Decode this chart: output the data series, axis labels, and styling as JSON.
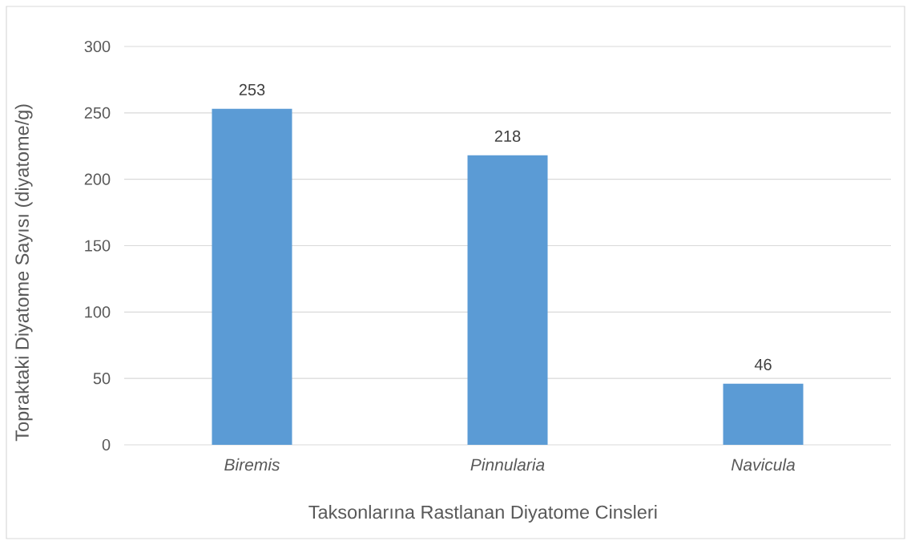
{
  "chart_data": {
    "type": "bar",
    "xlabel": "Taksonlarına Rastlanan Diyatome Cinsleri",
    "ylabel": "Topraktaki Diyatome Sayısı (diyatome/g)",
    "categories": [
      "Biremis",
      "Pinnularia",
      "Navicula"
    ],
    "values": [
      253,
      218,
      46
    ],
    "color": "#5b9bd5",
    "ylim": [
      0,
      300
    ],
    "yticks": [
      0,
      50,
      100,
      150,
      200,
      250,
      300
    ],
    "grid": "y",
    "data_labels": true
  }
}
